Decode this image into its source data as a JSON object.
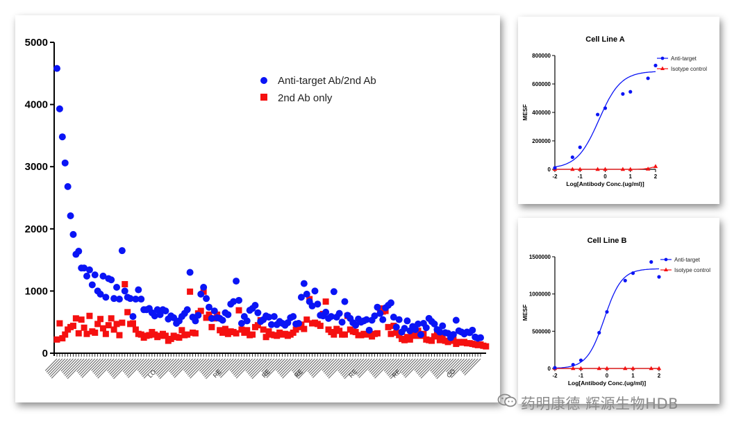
{
  "watermark": {
    "text": "药明康德 辉源生物HDB",
    "icon": "wechat-icon"
  },
  "colors": {
    "anti": "#0a14f5",
    "second": "#f51010",
    "axis": "#000000"
  },
  "chart_data": [
    {
      "type": "scatter",
      "ylim": [
        0,
        5000
      ],
      "yticks": [
        "0",
        "1000",
        "2000",
        "3000",
        "4000",
        "5000"
      ],
      "ytick_values": [
        0,
        1000,
        2000,
        3000,
        4000,
        5000
      ],
      "xtick_labels_visible": [
        "LO",
        "RE",
        "RE",
        "RE",
        "RE",
        "RE",
        "CO"
      ],
      "legend": {
        "placement": "top-center",
        "entries": [
          "Anti-target Ab/2nd Ab",
          "2nd Ab only"
        ]
      },
      "series": [
        {
          "name": "Anti-target Ab/2nd Ab",
          "marker": "circle",
          "values": [
            4580,
            3930,
            3480,
            3060,
            2680,
            2210,
            1910,
            1590,
            1640,
            1370,
            1370,
            1240,
            1340,
            1100,
            1260,
            1000,
            950,
            1240,
            900,
            1200,
            1180,
            880,
            1060,
            870,
            1650,
            1000,
            900,
            880,
            590,
            870,
            1020,
            870,
            700,
            700,
            720,
            650,
            600,
            700,
            620,
            700,
            680,
            550,
            600,
            570,
            480,
            520,
            590,
            640,
            700,
            1300,
            580,
            520,
            610,
            950,
            1060,
            880,
            740,
            560,
            680,
            570,
            560,
            530,
            650,
            620,
            790,
            830,
            1160,
            850,
            480,
            590,
            520,
            690,
            720,
            770,
            650,
            510,
            540,
            600,
            580,
            460,
            590,
            460,
            510,
            480,
            450,
            490,
            570,
            590,
            470,
            480,
            900,
            1120,
            950,
            830,
            760,
            1000,
            790,
            610,
            600,
            660,
            560,
            590,
            990,
            580,
            640,
            500,
            830,
            610,
            560,
            490,
            450,
            550,
            500,
            520,
            540,
            370,
            530,
            600,
            740,
            640,
            540,
            730,
            770,
            810,
            580,
            420,
            540,
            340,
            400,
            520,
            360,
            430,
            380,
            470,
            300,
            480,
            410,
            560,
            510,
            470,
            380,
            340,
            440,
            330,
            320,
            250,
            300,
            530,
            360,
            340,
            310,
            340,
            330,
            370,
            260,
            240,
            250
          ]
        },
        {
          "name": "2nd Ab only",
          "marker": "square",
          "values": [
            220,
            480,
            240,
            300,
            380,
            420,
            440,
            560,
            320,
            540,
            410,
            310,
            600,
            350,
            330,
            470,
            550,
            400,
            310,
            450,
            560,
            380,
            470,
            290,
            490,
            1110,
            660,
            470,
            480,
            380,
            310,
            300,
            250,
            280,
            290,
            340,
            300,
            260,
            280,
            310,
            280,
            200,
            230,
            280,
            260,
            250,
            370,
            290,
            300,
            990,
            330,
            320,
            640,
            680,
            990,
            570,
            620,
            420,
            560,
            620,
            370,
            330,
            390,
            310,
            350,
            340,
            320,
            690,
            380,
            330,
            370,
            290,
            300,
            420,
            450,
            530,
            380,
            260,
            350,
            300,
            290,
            280,
            330,
            300,
            310,
            280,
            300,
            330,
            380,
            420,
            460,
            390,
            540,
            870,
            480,
            490,
            470,
            440,
            630,
            830,
            380,
            340,
            300,
            390,
            360,
            300,
            300,
            600,
            380,
            350,
            340,
            290,
            290,
            310,
            300,
            340,
            270,
            310,
            320,
            720,
            670,
            680,
            420,
            310,
            440,
            330,
            290,
            230,
            210,
            260,
            220,
            290,
            280,
            360,
            280,
            310,
            220,
            210,
            200,
            270,
            300,
            210,
            260,
            200,
            180,
            200,
            220,
            150,
            180,
            170,
            180,
            160,
            160,
            150,
            140,
            130,
            140,
            120,
            110
          ]
        }
      ]
    },
    {
      "type": "line",
      "title": "Cell Line A",
      "xlabel": "Log[Antibody Conc.(ug/ml)]",
      "ylabel": "MESF",
      "xlim": [
        -2,
        2
      ],
      "ylim": [
        0,
        800000
      ],
      "xticks": [
        "-2",
        "-1",
        "0",
        "1",
        "2"
      ],
      "yticks": [
        "0",
        "200000",
        "400000",
        "600000",
        "800000"
      ],
      "legend": {
        "placement": "top-right",
        "entries": [
          "Anti-target",
          "Isotype control"
        ]
      },
      "series": [
        {
          "name": "Anti-target",
          "marker": "circle",
          "x": [
            -2,
            -1.3,
            -1,
            -0.3,
            0,
            0.7,
            1,
            1.7,
            2
          ],
          "y": [
            10000,
            85000,
            155000,
            385000,
            430000,
            530000,
            545000,
            640000,
            730000
          ]
        },
        {
          "name": "Isotype control",
          "marker": "triangle",
          "x": [
            -2,
            -1.3,
            -1,
            -0.3,
            0,
            0.7,
            1,
            1.7,
            2
          ],
          "y": [
            0,
            0,
            0,
            0,
            0,
            0,
            0,
            2000,
            20000
          ]
        }
      ]
    },
    {
      "type": "line",
      "title": "Cell Line B",
      "xlabel": "Log[Antibody Conc.(ug/ml)]",
      "ylabel": "MESF",
      "xlim": [
        -2,
        2
      ],
      "ylim": [
        0,
        1500000
      ],
      "xticks": [
        "-2",
        "-1",
        "0",
        "1",
        "2"
      ],
      "yticks": [
        "0",
        "500000",
        "1000000",
        "1500000"
      ],
      "legend": {
        "placement": "top-right",
        "entries": [
          "Anti-target",
          "Isotype control"
        ]
      },
      "series": [
        {
          "name": "Anti-target",
          "marker": "circle",
          "x": [
            -2,
            -1.3,
            -1,
            -0.3,
            0,
            0.7,
            1,
            1.7,
            2
          ],
          "y": [
            10000,
            50000,
            110000,
            480000,
            760000,
            1180000,
            1280000,
            1430000,
            1230000
          ]
        },
        {
          "name": "Isotype control",
          "marker": "triangle",
          "x": [
            -2,
            -1.3,
            -1,
            -0.3,
            0,
            0.7,
            1,
            1.7,
            2
          ],
          "y": [
            0,
            0,
            0,
            0,
            0,
            0,
            0,
            0,
            0
          ]
        }
      ]
    }
  ]
}
